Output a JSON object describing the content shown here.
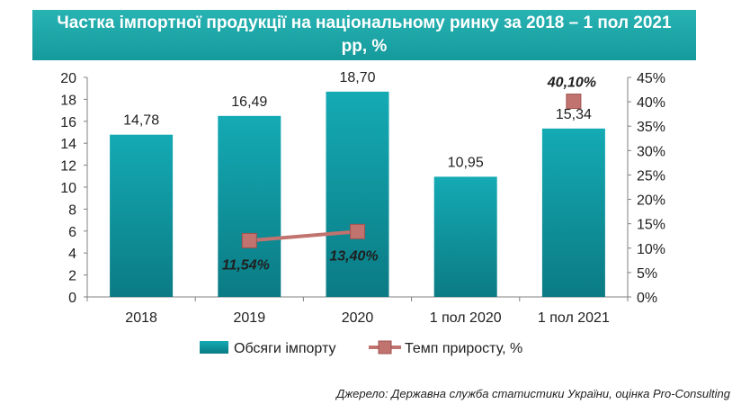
{
  "chart_data": {
    "type": "bar",
    "title": "Частка імпортної продукції на національному ринку за 2018 – 1 пол 2021 рр, %",
    "categories": [
      "2018",
      "2019",
      "2020",
      "1 пол 2020",
      "1 пол 2021"
    ],
    "series": [
      {
        "name": "Обсяги імпорту",
        "type": "bar",
        "axis": "left",
        "values": [
          14.78,
          16.49,
          18.7,
          10.95,
          15.34
        ],
        "labels": [
          "14,78",
          "16,49",
          "18,70",
          "10,95",
          "15,34"
        ],
        "color": "#13a3ad"
      },
      {
        "name": "Темп приросту, %",
        "type": "line",
        "axis": "right",
        "values": [
          null,
          11.54,
          13.4,
          null,
          40.1
        ],
        "labels": [
          "",
          "11,54%",
          "13,40%",
          "",
          "40,10%"
        ],
        "color": "#c0736f"
      }
    ],
    "y_left": {
      "min": 0,
      "max": 20,
      "step": 2,
      "ticks": [
        "0",
        "2",
        "4",
        "6",
        "8",
        "10",
        "12",
        "14",
        "16",
        "18",
        "20"
      ]
    },
    "y_right": {
      "min": 0,
      "max": 45,
      "step": 5,
      "ticks": [
        "0%",
        "5%",
        "10%",
        "15%",
        "20%",
        "25%",
        "30%",
        "35%",
        "40%",
        "45%"
      ]
    },
    "grid": false,
    "legend_position": "bottom"
  },
  "source": "Джерело: Державна служба статистики України, оцінка Pro-Consulting"
}
